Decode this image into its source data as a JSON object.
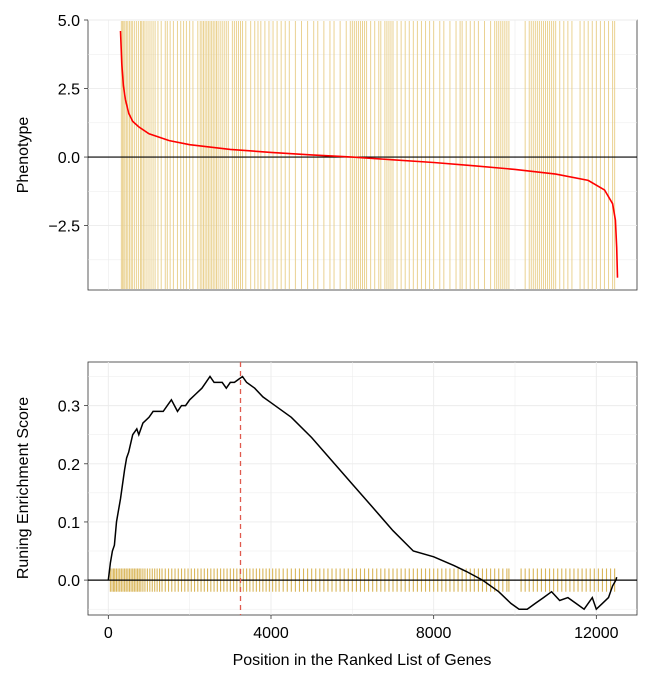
{
  "colors": {
    "hit_bars": "#E8CD86",
    "hit_ticks": "#D9B65A",
    "phenotype_curve": "#FF0000",
    "running_score": "#000000",
    "max_marker": "#E05A4E",
    "panel_border": "#333333",
    "grid": "#EBEBEB"
  },
  "chart_data": [
    {
      "type": "line",
      "panel": "phenotype",
      "ylabel": "Phenotype",
      "xlim": [
        -500,
        13000
      ],
      "ylim": [
        -4.85,
        5.0
      ],
      "yticks": [
        5.0,
        2.5,
        0.0,
        -2.5
      ],
      "ytick_labels": [
        "5.0",
        "2.5",
        "0.0",
        "−2.5"
      ],
      "hline": 0.0,
      "phenotype_curve": {
        "x": [
          300,
          330,
          370,
          420,
          500,
          600,
          750,
          1000,
          1500,
          2000,
          3000,
          4000,
          5000,
          6000,
          7000,
          8000,
          9000,
          10000,
          11000,
          11800,
          12200,
          12400,
          12470,
          12500,
          12520
        ],
        "y": [
          4.6,
          3.4,
          2.6,
          2.1,
          1.6,
          1.3,
          1.1,
          0.85,
          0.6,
          0.45,
          0.28,
          0.17,
          0.08,
          0.0,
          -0.1,
          -0.2,
          -0.32,
          -0.45,
          -0.62,
          -0.85,
          -1.2,
          -1.7,
          -2.3,
          -3.3,
          -4.4
        ]
      },
      "gene_set_hits": [
        320,
        350,
        380,
        410,
        450,
        480,
        520,
        560,
        590,
        640,
        690,
        740,
        790,
        820,
        860,
        900,
        950,
        1000,
        1050,
        1100,
        1150,
        1220,
        1300,
        1400,
        1450,
        1520,
        1600,
        1700,
        1780,
        1850,
        1920,
        2000,
        2080,
        2200,
        2260,
        2300,
        2340,
        2380,
        2420,
        2460,
        2500,
        2540,
        2580,
        2620,
        2660,
        2700,
        2750,
        2800,
        2850,
        2900,
        2950,
        3050,
        3100,
        3150,
        3200,
        3250,
        3300,
        3380,
        3500,
        3600,
        3680,
        3750,
        3850,
        3950,
        4050,
        4150,
        4250,
        4350,
        4450,
        4600,
        4750,
        4900,
        5050,
        5150,
        5300,
        5450,
        5550,
        5700,
        5850,
        5950,
        6000,
        6050,
        6100,
        6150,
        6200,
        6250,
        6300,
        6350,
        6450,
        6550,
        6650,
        6700,
        6800,
        6850,
        6900,
        6950,
        7000,
        7100,
        7200,
        7300,
        7400,
        7500,
        7600,
        7700,
        7800,
        7900,
        8000,
        8150,
        8250,
        8400,
        8550,
        8650,
        8700,
        8800,
        8900,
        9000,
        9100,
        9250,
        9400,
        9500,
        9550,
        9600,
        9650,
        9700,
        9750,
        9800,
        9850,
        10250,
        10350,
        10400,
        10450,
        10500,
        10550,
        10600,
        10650,
        10700,
        10750,
        10800,
        10850,
        10900,
        10950,
        11000,
        11100,
        11200,
        11300,
        11400,
        11600,
        11700,
        11800,
        11900,
        12000,
        12100,
        12200,
        12300,
        12400,
        12450
      ]
    },
    {
      "type": "line",
      "panel": "running-enrichment",
      "ylabel": "Runing Enrichment Score",
      "xlabel": "Position in the Ranked List of Genes",
      "xlim": [
        -500,
        13000
      ],
      "ylim": [
        -0.06,
        0.375
      ],
      "xticks": [
        0,
        4000,
        8000,
        12000
      ],
      "xtick_labels": [
        "0",
        "4000",
        "8000",
        "12000"
      ],
      "yticks": [
        0.0,
        0.1,
        0.2,
        0.3
      ],
      "ytick_labels": [
        "0.0",
        "0.1",
        "0.2",
        "0.3"
      ],
      "hline": 0.0,
      "max_es_position": 3250,
      "running_score": {
        "x": [
          0,
          50,
          100,
          150,
          200,
          250,
          300,
          400,
          450,
          500,
          600,
          700,
          750,
          850,
          1000,
          1100,
          1200,
          1350,
          1450,
          1550,
          1700,
          1800,
          1900,
          2000,
          2150,
          2300,
          2400,
          2500,
          2600,
          2700,
          2800,
          2900,
          3000,
          3100,
          3200,
          3300,
          3400,
          3600,
          3800,
          4000,
          4500,
          5000,
          5500,
          6000,
          6500,
          7000,
          7500,
          8000,
          8500,
          8800,
          9200,
          9600,
          9900,
          10100,
          10300,
          10500,
          10700,
          10900,
          11100,
          11300,
          11500,
          11700,
          11900,
          12000,
          12150,
          12300,
          12400,
          12480,
          12500
        ],
        "y": [
          0.0,
          0.03,
          0.05,
          0.06,
          0.1,
          0.12,
          0.14,
          0.19,
          0.21,
          0.22,
          0.25,
          0.26,
          0.25,
          0.27,
          0.28,
          0.29,
          0.29,
          0.29,
          0.3,
          0.31,
          0.29,
          0.3,
          0.3,
          0.31,
          0.32,
          0.33,
          0.34,
          0.35,
          0.34,
          0.34,
          0.34,
          0.33,
          0.34,
          0.34,
          0.345,
          0.35,
          0.34,
          0.33,
          0.315,
          0.305,
          0.28,
          0.245,
          0.205,
          0.165,
          0.125,
          0.085,
          0.05,
          0.04,
          0.025,
          0.015,
          0.0,
          -0.02,
          -0.04,
          -0.05,
          -0.05,
          -0.04,
          -0.03,
          -0.02,
          -0.035,
          -0.03,
          -0.04,
          -0.05,
          -0.03,
          -0.05,
          -0.04,
          -0.03,
          -0.01,
          0.0,
          0.005
        ]
      },
      "hit_ticks": [
        50,
        90,
        130,
        160,
        200,
        240,
        280,
        320,
        360,
        400,
        440,
        480,
        520,
        560,
        600,
        640,
        680,
        720,
        760,
        800,
        850,
        900,
        960,
        1020,
        1080,
        1140,
        1200,
        1260,
        1320,
        1400,
        1480,
        1560,
        1640,
        1720,
        1800,
        1880,
        1960,
        2040,
        2120,
        2200,
        2280,
        2360,
        2440,
        2520,
        2600,
        2680,
        2760,
        2840,
        2920,
        3000,
        3080,
        3160,
        3240,
        3320,
        3400,
        3480,
        3560,
        3640,
        3720,
        3800,
        3880,
        3960,
        4040,
        4120,
        4200,
        4300,
        4400,
        4500,
        4600,
        4700,
        4800,
        4900,
        5000,
        5100,
        5200,
        5300,
        5400,
        5500,
        5600,
        5700,
        5800,
        5900,
        6000,
        6100,
        6200,
        6300,
        6400,
        6500,
        6600,
        6700,
        6800,
        6900,
        7000,
        7100,
        7200,
        7300,
        7400,
        7500,
        7600,
        7700,
        7800,
        7900,
        8000,
        8100,
        8200,
        8300,
        8400,
        8500,
        8600,
        8700,
        8800,
        8900,
        9000,
        9100,
        9200,
        9300,
        9400,
        9500,
        9600,
        9700,
        9800,
        9850,
        10150,
        10250,
        10350,
        10450,
        10550,
        10650,
        10750,
        10850,
        10950,
        11050,
        11150,
        11250,
        11350,
        11450,
        11550,
        11650,
        11750,
        11850,
        11950,
        12050,
        12150,
        12250,
        12350,
        12450
      ]
    }
  ]
}
